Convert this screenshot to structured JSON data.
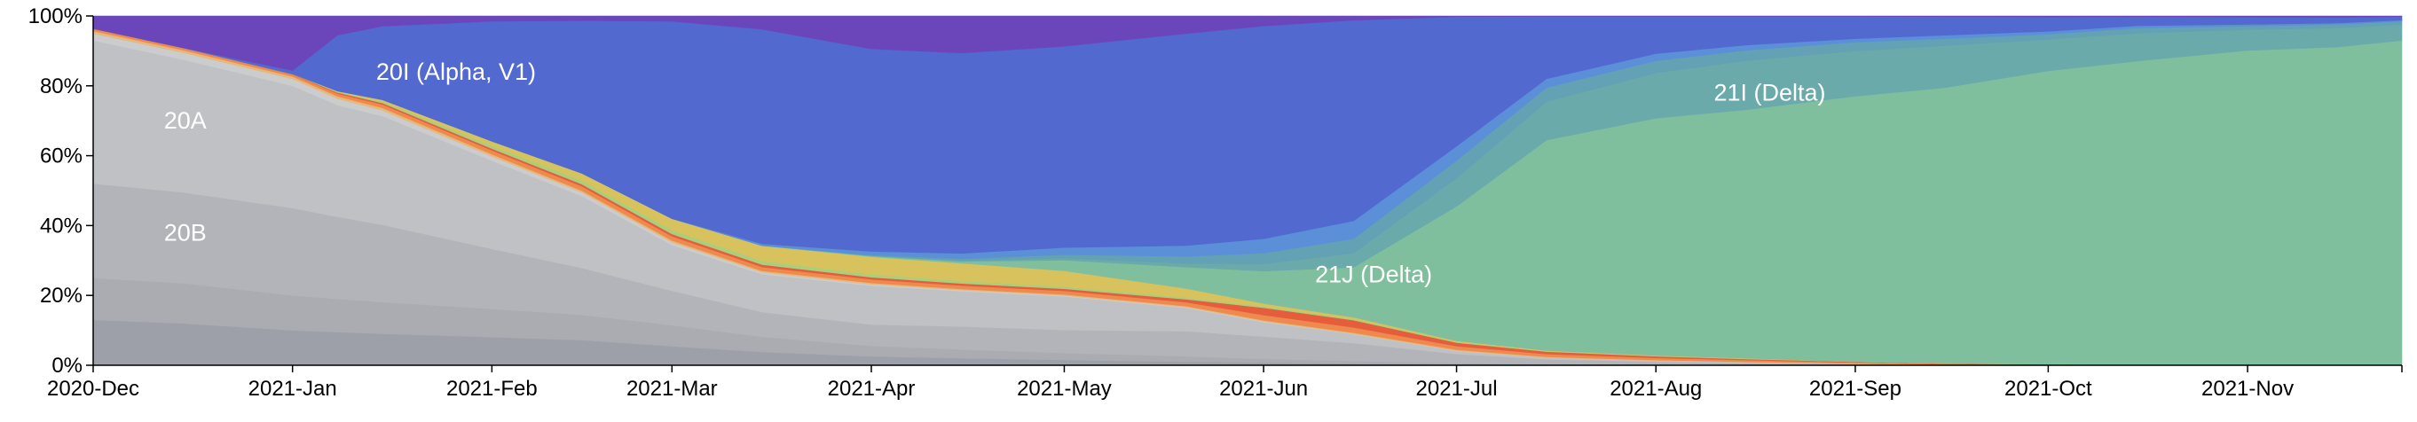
{
  "chart_data": {
    "type": "area",
    "stacked": true,
    "normalized": true,
    "title": "",
    "xlabel": "",
    "ylabel": "",
    "ylim": [
      0,
      100
    ],
    "y_ticks": [
      "0%",
      "20%",
      "40%",
      "60%",
      "80%",
      "100%"
    ],
    "x_ticks": [
      "2020-Dec",
      "2021-Jan",
      "2021-Feb",
      "2021-Mar",
      "2021-Apr",
      "2021-May",
      "2021-Jun",
      "2021-Jul",
      "2021-Aug",
      "2021-Sep",
      "2021-Oct",
      "2021-Nov"
    ],
    "x": [
      "2020-12-01",
      "2020-12-15",
      "2021-01-01",
      "2021-01-08",
      "2021-01-15",
      "2021-02-01",
      "2021-02-15",
      "2021-03-01",
      "2021-03-15",
      "2021-04-01",
      "2021-04-15",
      "2021-05-01",
      "2021-05-20",
      "2021-06-01",
      "2021-06-15",
      "2021-07-01",
      "2021-07-15",
      "2021-08-01",
      "2021-08-15",
      "2021-09-01",
      "2021-09-15",
      "2021-10-01",
      "2021-10-15",
      "2021-11-01",
      "2021-11-15",
      "2021-11-25"
    ],
    "series": [
      {
        "name": "",
        "color": "#9da0a8",
        "values": [
          13,
          12,
          10,
          9.5,
          9,
          8,
          7,
          5,
          3.5,
          2.5,
          2,
          1.5,
          1,
          0.8,
          0.5,
          0.3,
          0.2,
          0.1,
          0.1,
          0,
          0,
          0,
          0,
          0,
          0,
          0
        ]
      },
      {
        "name": "",
        "color": "#aaacb2",
        "values": [
          12,
          11.5,
          10,
          9.5,
          9,
          8,
          7,
          5.5,
          4,
          3,
          2.5,
          2,
          1.5,
          1,
          0.7,
          0.4,
          0.2,
          0.1,
          0.1,
          0,
          0,
          0,
          0,
          0,
          0,
          0
        ]
      },
      {
        "name": "20B",
        "color": "#b2b4b9",
        "values": [
          27,
          26,
          25,
          23.5,
          22,
          17,
          13,
          9,
          6.5,
          6,
          6.5,
          6.5,
          7,
          6.2,
          5,
          2.5,
          1.3,
          0.8,
          0.5,
          0.3,
          0.2,
          0.1,
          0,
          0,
          0,
          0
        ]
      },
      {
        "name": "20A",
        "color": "#bfc1c4",
        "values": [
          41,
          38,
          35,
          32,
          31,
          25,
          20,
          12,
          10,
          11,
          10,
          9.5,
          6.5,
          4,
          2.5,
          0.8,
          0.5,
          0.3,
          0.2,
          0.1,
          0,
          0,
          0,
          0,
          0,
          0
        ]
      },
      {
        "name": "",
        "color": "#cbcccd",
        "values": [
          2,
          2,
          2,
          1.8,
          1.6,
          1.2,
          1,
          0.7,
          0.5,
          0.4,
          0.3,
          0.3,
          0.2,
          0.2,
          0.1,
          0.1,
          0,
          0,
          0,
          0,
          0,
          0,
          0,
          0,
          0,
          0
        ]
      },
      {
        "name": "",
        "color": "#e6b87a",
        "values": [
          0.7,
          0.7,
          0.7,
          0.7,
          0.7,
          0.6,
          0.5,
          0.5,
          0.4,
          0.4,
          0.3,
          0.3,
          0.3,
          0.3,
          0.3,
          0.3,
          0.2,
          0.2,
          0.1,
          0.1,
          0,
          0,
          0,
          0,
          0,
          0
        ]
      },
      {
        "name": "",
        "color": "#ee8a4e",
        "values": [
          0.6,
          0.6,
          0.6,
          0.8,
          1,
          1.1,
          1.2,
          1.1,
          1,
          1,
          1,
          1,
          1.1,
          1.5,
          1.5,
          1,
          0.8,
          0.6,
          0.5,
          0.3,
          0.2,
          0.1,
          0.1,
          0,
          0,
          0
        ]
      },
      {
        "name": "",
        "color": "#e55d3c",
        "values": [
          0.1,
          0.1,
          0.1,
          0.3,
          0.4,
          0.5,
          0.6,
          0.6,
          0.6,
          0.6,
          0.6,
          0.6,
          0.8,
          2,
          2,
          1,
          0.7,
          0.5,
          0.3,
          0.2,
          0.1,
          0.1,
          0,
          0,
          0,
          0
        ]
      },
      {
        "name": "",
        "color": "#a8cf7c",
        "values": [
          0,
          0,
          0,
          0.2,
          0.4,
          0.8,
          1,
          1,
          1,
          0.8,
          0.7,
          0.6,
          0.5,
          0.4,
          0.3,
          0.2,
          0.1,
          0.1,
          0.1,
          0,
          0,
          0,
          0,
          0,
          0,
          0
        ]
      },
      {
        "name": "",
        "color": "#d8c25e",
        "values": [
          0,
          0,
          0,
          0.2,
          0.5,
          1.3,
          2,
          3,
          4,
          5,
          5,
          4.5,
          2.5,
          0.8,
          0.5,
          0.3,
          0.2,
          0.1,
          0.1,
          0,
          0,
          0,
          0,
          0,
          0,
          0
        ]
      },
      {
        "name": "21J (Delta)",
        "color": "#80bf9d",
        "values": [
          0,
          0,
          0,
          0,
          0,
          0,
          0,
          0,
          0,
          0.2,
          0.5,
          3,
          6,
          9,
          14,
          38,
          60,
          68,
          71,
          76,
          79,
          84,
          87,
          90,
          91,
          93
        ]
      },
      {
        "name": "",
        "color": "#6aaaaa",
        "values": [
          0,
          0,
          0,
          0,
          0,
          0,
          0,
          0,
          0,
          0.1,
          0.3,
          0.6,
          1,
          2,
          4,
          8,
          11,
          13,
          14,
          13,
          12,
          9,
          8,
          6,
          5.5,
          4.5
        ]
      },
      {
        "name": "21I (Delta)",
        "color": "#63a1b4",
        "values": [
          0,
          0,
          0,
          0,
          0,
          0,
          0,
          0,
          0,
          0.2,
          0.5,
          1,
          2,
          3,
          4,
          5,
          4,
          3.5,
          3,
          2.5,
          2,
          1.5,
          1.5,
          1,
          1,
          1
        ]
      },
      {
        "name": "",
        "color": "#5b8fd8",
        "values": [
          0,
          0,
          0,
          0,
          0,
          0,
          0,
          0,
          0.5,
          1,
          1.5,
          2,
          3,
          4,
          5,
          4,
          2.5,
          2,
          1.5,
          1,
          1,
          0.8,
          0.6,
          0.5,
          0.4,
          0.3
        ]
      },
      {
        "name": "20I (Alpha, V1)",
        "color": "#5269d0",
        "values": [
          0,
          0,
          1,
          16,
          21,
          34,
          42.4,
          51.7,
          56.5,
          57.3,
          56.8,
          57.1,
          59.2,
          59.2,
          56.1,
          36.6,
          17.8,
          10.7,
          8.2,
          6.4,
          5.3,
          4.1,
          2.6,
          2.1,
          1.6,
          1
        ]
      },
      {
        "name": "",
        "color": "#6b46bb",
        "values": [
          3.6,
          9.1,
          15.6,
          5.5,
          2.9,
          1.5,
          1.3,
          1.4,
          3.5,
          9.3,
          10.5,
          8.6,
          4.9,
          2.8,
          1.2,
          0.2,
          0.1,
          0.1,
          0.1,
          0.1,
          0.2,
          0.3,
          0.2,
          0.3,
          0.4,
          0.2
        ]
      }
    ],
    "grid": false,
    "legend": "none",
    "annotations": [
      {
        "text": "20A",
        "x": "2020-12-12",
        "y": 70
      },
      {
        "text": "20B",
        "x": "2020-12-12",
        "y": 38
      },
      {
        "text": "20I (Alpha, V1)",
        "x": "2021-01-14",
        "y": 84
      },
      {
        "text": "21J (Delta)",
        "x": "2021-06-09",
        "y": 26
      },
      {
        "text": "21I (Delta)",
        "x": "2021-08-10",
        "y": 78
      }
    ]
  }
}
